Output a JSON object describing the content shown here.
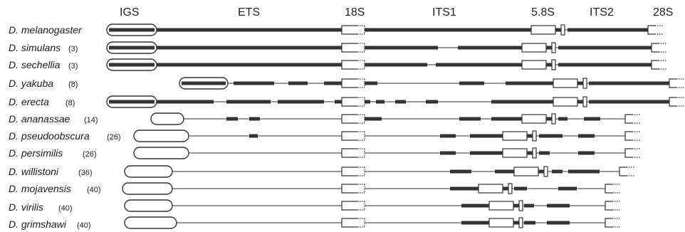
{
  "header": {
    "igs": "IGS",
    "ets": "ETS",
    "s18": "18S",
    "its1": "ITS1",
    "s58": "5.8S",
    "its2": "ITS2",
    "s28": "28S"
  },
  "species": [
    {
      "name": "D. melanogaster",
      "count": ""
    },
    {
      "name": "D. simulans",
      "count": "(3)"
    },
    {
      "name": "D. sechellia",
      "count": "(3)"
    },
    {
      "name": "D. yakuba",
      "count": "(8)"
    },
    {
      "name": "D. erecta",
      "count": "(8)"
    },
    {
      "name": "D. ananassae",
      "count": "(14)"
    },
    {
      "name": "D. pseudoobscura",
      "count": "(26)"
    },
    {
      "name": "D. persimilis",
      "count": "(26)"
    },
    {
      "name": "D. willistoni",
      "count": "(36)"
    },
    {
      "name": "D. mojavensis",
      "count": "(40)"
    },
    {
      "name": "D. virilis",
      "count": "(40)"
    },
    {
      "name": "D. grimshawi",
      "count": "(40)"
    }
  ],
  "colors": {
    "line": "#333333",
    "fill": "#ffffff"
  }
}
